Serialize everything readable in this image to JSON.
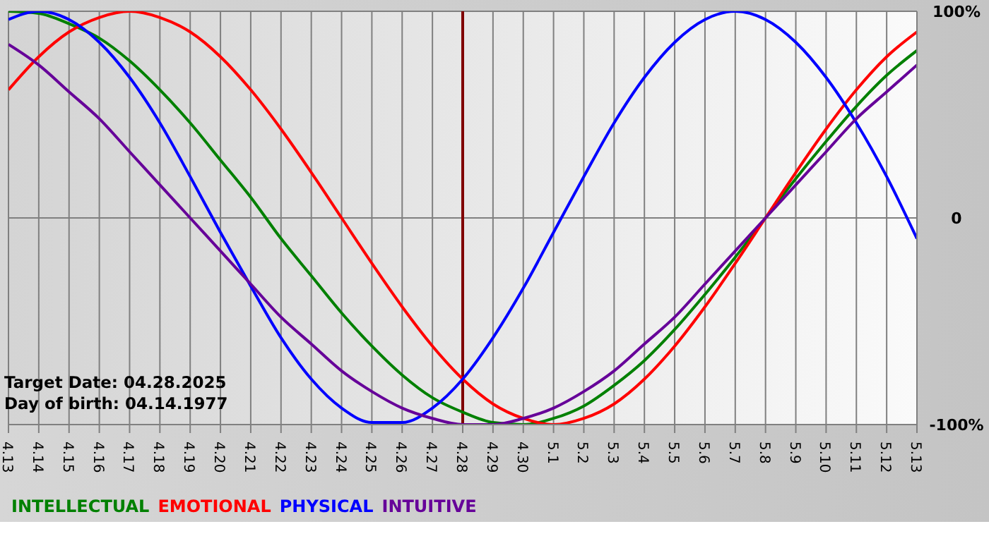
{
  "chart_data": {
    "type": "line",
    "categories": [
      "4.13",
      "4.14",
      "4.15",
      "4.16",
      "4.17",
      "4.18",
      "4.19",
      "4.20",
      "4.21",
      "4.22",
      "4.23",
      "4.24",
      "4.25",
      "4.26",
      "4.27",
      "4.28",
      "4.29",
      "4.30",
      "5.1",
      "5.2",
      "5.3",
      "5.4",
      "5.5",
      "5.6",
      "5.7",
      "5.8",
      "5.9",
      "5.10",
      "5.11",
      "5.12",
      "5.13"
    ],
    "series": [
      {
        "name": "INTELLECTUAL",
        "color": "#008000",
        "values": [
          100,
          99,
          94,
          87,
          76,
          62,
          46,
          28,
          10,
          -10,
          -28,
          -46,
          -62,
          -76,
          -87,
          -94,
          -99,
          -100,
          -97,
          -91,
          -81,
          -69,
          -54,
          -37,
          -19,
          0,
          19,
          37,
          54,
          69,
          81
        ]
      },
      {
        "name": "EMOTIONAL",
        "color": "#ff0000",
        "values": [
          62,
          78,
          90,
          97,
          100,
          97,
          90,
          78,
          62,
          43,
          22,
          0,
          -22,
          -43,
          -62,
          -78,
          -90,
          -97,
          -100,
          -97,
          -90,
          -78,
          -62,
          -43,
          -22,
          0,
          22,
          43,
          62,
          78,
          90
        ]
      },
      {
        "name": "PHYSICAL",
        "color": "#0000ff",
        "values": [
          96,
          100,
          96,
          85,
          68,
          46,
          20,
          -7,
          -33,
          -58,
          -78,
          -92,
          -99,
          -99,
          -92,
          -78,
          -58,
          -34,
          -7,
          20,
          46,
          68,
          85,
          96,
          100,
          96,
          85,
          68,
          46,
          20,
          -10
        ]
      },
      {
        "name": "INTUITIVE",
        "color": "#660099",
        "values": [
          84,
          74,
          61,
          48,
          32,
          16,
          0,
          -16,
          -32,
          -48,
          -61,
          -74,
          -84,
          -92,
          -97,
          -100,
          -100,
          -97,
          -92,
          -84,
          -74,
          -61,
          -48,
          -32,
          -16,
          0,
          16,
          32,
          48,
          61,
          74
        ]
      }
    ],
    "ylim": [
      -100,
      100
    ],
    "yticks": [
      {
        "value": -100,
        "label": "-100%"
      },
      0,
      {
        "value": 100,
        "label": "100%"
      }
    ],
    "ref_lines": [
      {
        "axis": "x",
        "value": "4.28",
        "color": "#800000"
      }
    ],
    "annotations": [
      "Target Date: 04.28.2025",
      "Day of birth: 04.14.1977"
    ],
    "grid": true,
    "legend": "bottom left"
  }
}
